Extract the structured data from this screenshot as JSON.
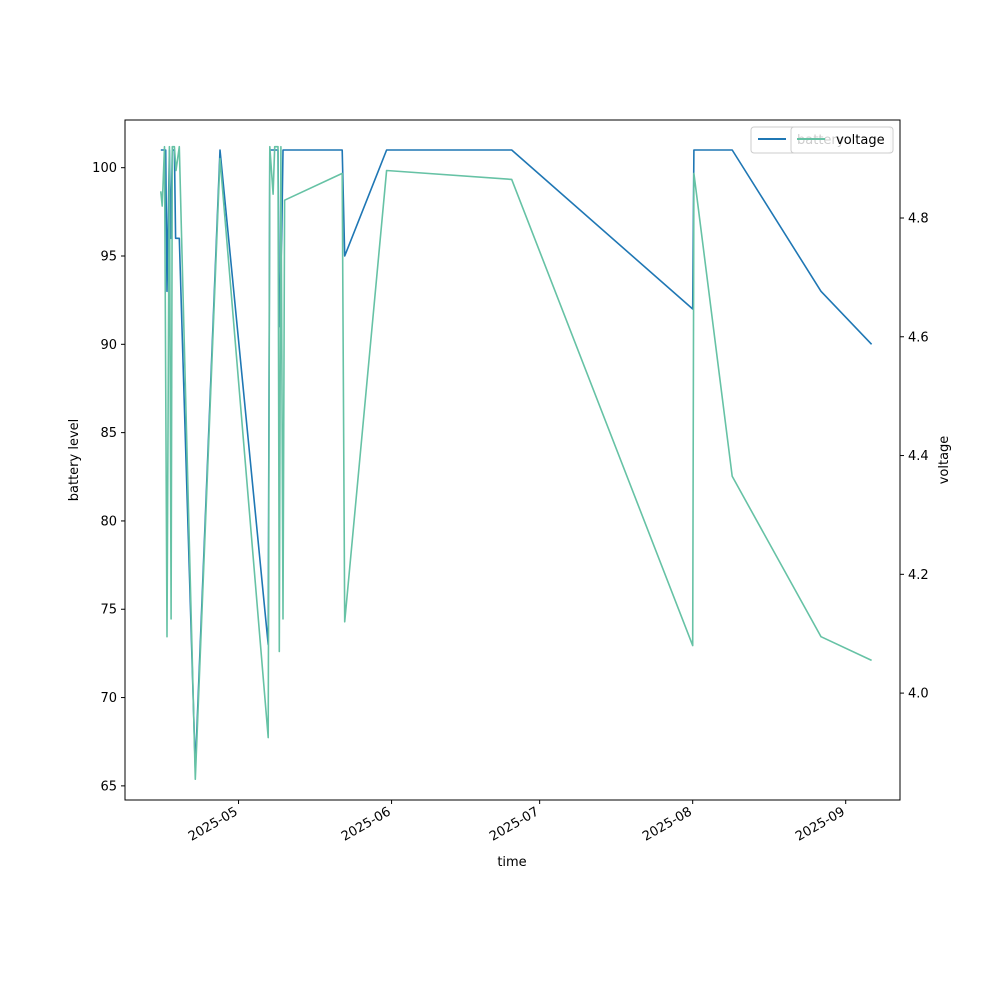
{
  "chart_data": {
    "type": "line",
    "xlabel": "time",
    "ylabel": "battery level",
    "y2label": "voltage",
    "xlim": [
      "2025-04-08T00:00",
      "2025-09-12T00:00"
    ],
    "ylim": [
      64.2,
      102.7
    ],
    "y2lim": [
      3.82,
      4.965
    ],
    "x_ticks": [
      "2025-05-01",
      "2025-06-01",
      "2025-07-01",
      "2025-08-01",
      "2025-09-01"
    ],
    "x_tick_labels": [
      "2025-05",
      "2025-06",
      "2025-07",
      "2025-08",
      "2025-09"
    ],
    "y_ticks": [
      65,
      70,
      75,
      80,
      85,
      90,
      95,
      100
    ],
    "y2_ticks": [
      4.0,
      4.2,
      4.4,
      4.6,
      4.8
    ],
    "y2_tick_labels": [
      "4.0",
      "4.2",
      "4.4",
      "4.6",
      "4.8"
    ],
    "legend_position": "upper right",
    "series": [
      {
        "name": "battery",
        "axis": "left",
        "color": "#1f77b4",
        "x": [
          "2025-04-15T06:00",
          "2025-04-16T00:00",
          "2025-04-16T06:00",
          "2025-04-16T12:00",
          "2025-04-17T00:00",
          "2025-04-17T07:00",
          "2025-04-17T14:00",
          "2025-04-18T00:00",
          "2025-04-18T06:00",
          "2025-04-19T00:00",
          "2025-04-22T06:00",
          "2025-04-27T06:00",
          "2025-05-07T00:00",
          "2025-05-07T08:00",
          "2025-05-09T00:00",
          "2025-05-09T06:00",
          "2025-05-09T18:00",
          "2025-05-10T00:00",
          "2025-05-10T08:00",
          "2025-05-22T00:00",
          "2025-05-22T12:00",
          "2025-05-31T00:00",
          "2025-06-25T08:00",
          "2025-08-01T00:00",
          "2025-08-01T06:00",
          "2025-08-09T00:00",
          "2025-08-27T00:00",
          "2025-09-06T06:00"
        ],
        "values": [
          101,
          101,
          101,
          93,
          101,
          96,
          101,
          101,
          96,
          96,
          66,
          101,
          73,
          101,
          101,
          91,
          96,
          101,
          101,
          101,
          95,
          101,
          101,
          92,
          101,
          101,
          93,
          90
        ]
      },
      {
        "name": "voltage",
        "axis": "right",
        "color": "#66c2a5",
        "x": [
          "2025-04-15T06:00",
          "2025-04-15T13:00",
          "2025-04-16T00:00",
          "2025-04-16T12:00",
          "2025-04-17T00:00",
          "2025-04-17T08:00",
          "2025-04-17T14:00",
          "2025-04-18T00:00",
          "2025-04-18T08:00",
          "2025-04-19T00:00",
          "2025-04-22T06:00",
          "2025-04-27T06:00",
          "2025-05-07T00:00",
          "2025-05-07T08:00",
          "2025-05-08T00:00",
          "2025-05-08T08:00",
          "2025-05-09T00:00",
          "2025-05-09T06:00",
          "2025-05-09T14:00",
          "2025-05-10T00:00",
          "2025-05-10T08:00",
          "2025-05-22T00:00",
          "2025-05-22T12:00",
          "2025-05-31T00:00",
          "2025-06-25T08:00",
          "2025-08-01T00:00",
          "2025-08-01T06:00",
          "2025-08-09T00:00",
          "2025-08-27T00:00",
          "2025-09-06T06:00"
        ],
        "values": [
          4.845,
          4.82,
          4.92,
          4.095,
          4.92,
          4.125,
          4.92,
          4.92,
          4.88,
          4.92,
          3.855,
          4.9,
          3.925,
          4.92,
          4.84,
          4.92,
          4.92,
          4.07,
          4.92,
          4.125,
          4.83,
          4.875,
          4.12,
          4.88,
          4.865,
          4.08,
          4.875,
          4.365,
          4.095,
          4.055
        ]
      }
    ]
  }
}
